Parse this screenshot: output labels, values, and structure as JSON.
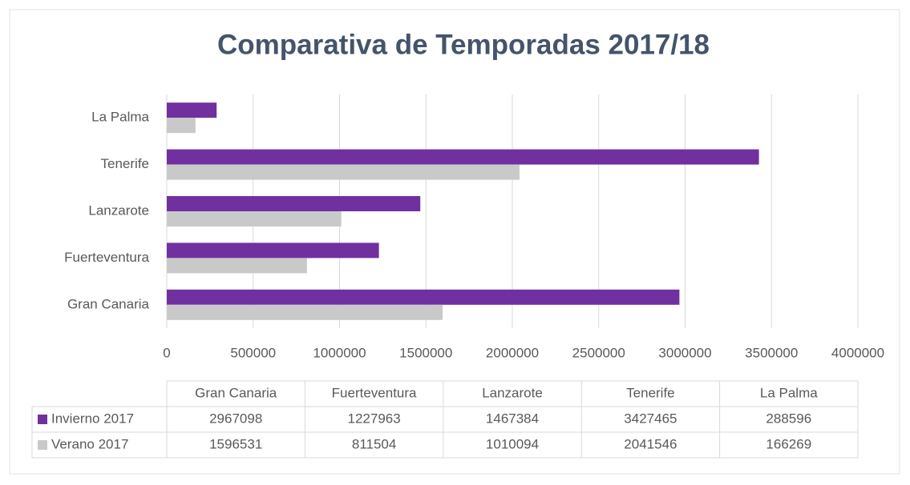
{
  "chart_data": {
    "type": "bar",
    "orientation": "horizontal",
    "title": "Comparativa de Temporadas 2017/18",
    "categories": [
      "Gran Canaria",
      "Fuerteventura",
      "Lanzarote",
      "Tenerife",
      "La Palma"
    ],
    "series": [
      {
        "name": "Invierno 2017",
        "color": "#7030a0",
        "values": [
          2967098,
          1227963,
          1467384,
          3427465,
          288596
        ]
      },
      {
        "name": "Verano 2017",
        "color": "#c9c9c9",
        "values": [
          1596531,
          811504,
          1010094,
          2041546,
          166269
        ]
      }
    ],
    "xlim": [
      0,
      4000000
    ],
    "xticks": [
      0,
      500000,
      1000000,
      1500000,
      2000000,
      2500000,
      3000000,
      3500000,
      4000000
    ],
    "grid": true,
    "data_table": true
  }
}
